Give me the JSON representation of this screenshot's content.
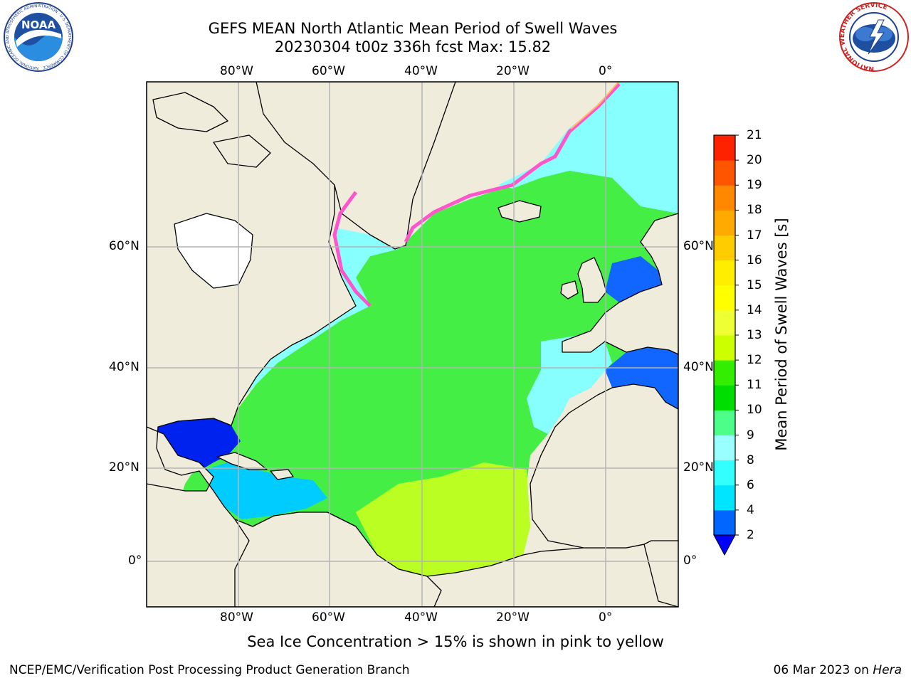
{
  "header": {
    "title_line1": "GEFS MEAN North Atlantic Mean Period of Swell Waves",
    "title_line2": "20230304 t00z 336h fcst   Max: 15.82"
  },
  "logos": {
    "left": {
      "name": "noaa-logo",
      "text": "NOAA",
      "ring_text": "NATIONAL OCEANIC AND ATMOSPHERIC ADMINISTRATION · U.S. DEPARTMENT OF COMMERCE"
    },
    "right": {
      "name": "nws-logo",
      "ring_text": "NATIONAL WEATHER SERVICE"
    }
  },
  "map": {
    "projection": "mercator",
    "lon_range": [
      -100,
      15
    ],
    "lat_range": [
      -8,
      78
    ],
    "longitude_ticks": [
      "80°W",
      "60°W",
      "40°W",
      "20°W",
      "0°"
    ],
    "latitude_ticks": [
      "60°N",
      "40°N",
      "20°N",
      "0°"
    ],
    "colors": {
      "land": "#efecdc",
      "ice": "#ffffff",
      "coast": "#000000",
      "grid": "#b4b4b4"
    }
  },
  "colorbar": {
    "label": "Mean Period of Swell Waves [s]",
    "tick_labels": [
      "2",
      "4",
      "6",
      "8",
      "9",
      "10",
      "11",
      "12",
      "13",
      "14",
      "15",
      "16",
      "17",
      "18",
      "19",
      "20",
      "21"
    ],
    "colors": [
      "#0066ff",
      "#00e5ff",
      "#33ffff",
      "#99ffff",
      "#4dff88",
      "#00dd00",
      "#33ee00",
      "#ccff00",
      "#eeff33",
      "#ffff00",
      "#ffee00",
      "#ffcc00",
      "#ffaa00",
      "#ff8800",
      "#ff5500",
      "#ff2200"
    ],
    "under_color": "#0000ff"
  },
  "annotation": "Sea Ice Concentration > 15% is shown in pink to yellow",
  "footer": {
    "left": "NCEP/EMC/Verification Post Processing Product Generation Branch",
    "right_date": "06 Mar 2023 on ",
    "right_host": "Hera"
  }
}
